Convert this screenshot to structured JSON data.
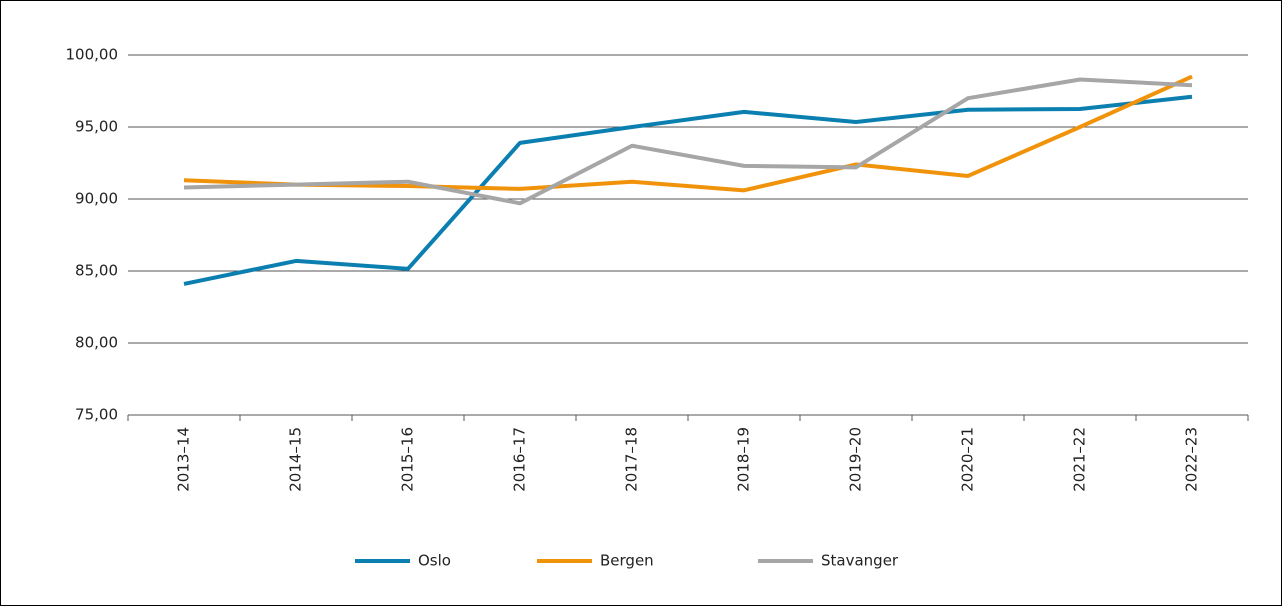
{
  "chart_data": {
    "type": "line",
    "categories": [
      "2013–14",
      "2014–15",
      "2015–16",
      "2016–17",
      "2017–18",
      "2018–19",
      "2019–20",
      "2020–21",
      "2021–22",
      "2022–23"
    ],
    "series": [
      {
        "name": "Oslo",
        "color": "#0a7fb0",
        "values": [
          84.1,
          85.7,
          85.15,
          93.9,
          95.0,
          96.05,
          95.35,
          96.2,
          96.25,
          97.1
        ]
      },
      {
        "name": "Bergen",
        "color": "#f0930a",
        "values": [
          91.3,
          91.0,
          90.9,
          90.7,
          91.2,
          90.6,
          92.4,
          91.6,
          95.0,
          98.5
        ]
      },
      {
        "name": "Stavanger",
        "color": "#a6a6a6",
        "values": [
          90.8,
          91.0,
          91.2,
          89.7,
          93.7,
          92.3,
          92.2,
          97.0,
          98.3,
          97.9
        ]
      }
    ],
    "ylim": [
      75,
      100
    ],
    "yticks": [
      {
        "value": 75,
        "label": "75,00"
      },
      {
        "value": 80,
        "label": "80,00"
      },
      {
        "value": 85,
        "label": "85,00"
      },
      {
        "value": 90,
        "label": "90,00"
      },
      {
        "value": 95,
        "label": "95,00"
      },
      {
        "value": 100,
        "label": "100,00"
      }
    ],
    "grid": true,
    "legend": "bottom"
  }
}
